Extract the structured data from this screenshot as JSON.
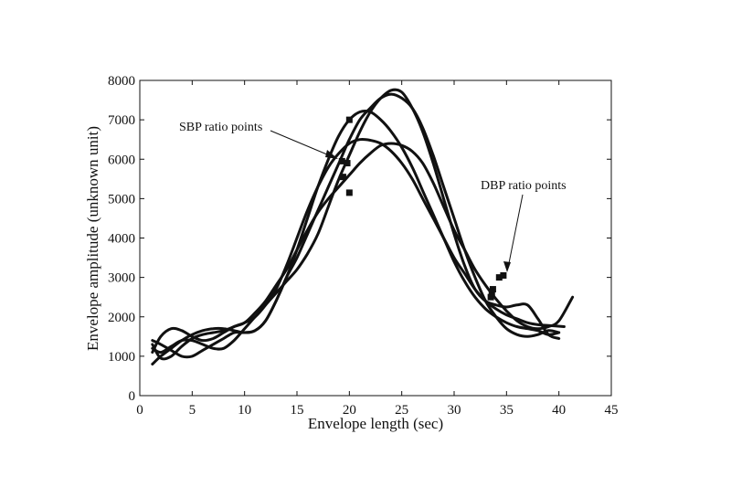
{
  "chart_data": {
    "type": "line",
    "title": "",
    "xlabel": "Envelope length (sec)",
    "ylabel": "Envelope amplitude (unknown unit)",
    "xlim": [
      0,
      45
    ],
    "ylim": [
      0,
      8000
    ],
    "xticks": [
      0,
      5,
      10,
      15,
      20,
      25,
      30,
      35,
      40,
      45
    ],
    "yticks": [
      0,
      1000,
      2000,
      3000,
      4000,
      5000,
      6000,
      7000,
      8000
    ],
    "grid": false,
    "line_color": "#111111",
    "series": [
      {
        "x": [
          1.2,
          2,
          3,
          4,
          5,
          6,
          7,
          8,
          9,
          10,
          11,
          12,
          13,
          14,
          15,
          16,
          17,
          18,
          19,
          20,
          21,
          22,
          23,
          24,
          25,
          26,
          27,
          28,
          29,
          30,
          31,
          32,
          33,
          34,
          35,
          36,
          37,
          38,
          39,
          40,
          41.3
        ],
        "y": [
          1300,
          950,
          1000,
          1250,
          1450,
          1550,
          1600,
          1650,
          1750,
          1850,
          2100,
          2400,
          2800,
          3200,
          3700,
          4200,
          4650,
          5000,
          5300,
          5600,
          5900,
          6150,
          6350,
          6400,
          6350,
          6200,
          5900,
          5400,
          4800,
          4200,
          3700,
          3200,
          2800,
          2450,
          2150,
          1900,
          1750,
          1700,
          1750,
          1900,
          2500
        ]
      },
      {
        "x": [
          1.2,
          2,
          3,
          4,
          5,
          6,
          7,
          8,
          9,
          10,
          11,
          12,
          13,
          14,
          15,
          16,
          17,
          18,
          19,
          20,
          21,
          22,
          23,
          24,
          25,
          26,
          27,
          28,
          29,
          30,
          31,
          32,
          33,
          34,
          35,
          36,
          37,
          38,
          39,
          40.5
        ],
        "y": [
          1100,
          1500,
          1700,
          1650,
          1500,
          1400,
          1450,
          1600,
          1750,
          1850,
          2000,
          2300,
          2700,
          3300,
          4000,
          4700,
          5300,
          5800,
          6150,
          6400,
          6500,
          6480,
          6400,
          6200,
          5900,
          5500,
          5000,
          4500,
          4000,
          3500,
          3100,
          2700,
          2400,
          2200,
          2050,
          1950,
          1850,
          1800,
          1780,
          1750
        ]
      },
      {
        "x": [
          1.2,
          2,
          3,
          4,
          5,
          6,
          7,
          8,
          9,
          10,
          11,
          12,
          13,
          14,
          15,
          16,
          17,
          18,
          19,
          20,
          21,
          22,
          23,
          24,
          25,
          26,
          27,
          28,
          29,
          30,
          31,
          32,
          33,
          34,
          35,
          36,
          37,
          38,
          39,
          40
        ],
        "y": [
          800,
          1000,
          1200,
          1400,
          1550,
          1650,
          1700,
          1700,
          1650,
          1600,
          1650,
          1900,
          2400,
          3000,
          3700,
          4500,
          5300,
          6000,
          6600,
          7000,
          7200,
          7200,
          7000,
          6700,
          6300,
          5800,
          5200,
          4600,
          4000,
          3400,
          2900,
          2500,
          2200,
          2000,
          1850,
          1750,
          1700,
          1650,
          1550,
          1600
        ]
      },
      {
        "x": [
          1.2,
          2,
          3,
          4,
          5,
          6,
          7,
          8,
          9,
          10,
          11,
          12,
          13,
          14,
          15,
          16,
          17,
          18,
          19,
          20,
          21,
          22,
          23,
          24,
          25,
          26,
          27,
          28,
          29,
          30,
          31,
          32,
          33,
          34,
          35,
          36,
          37,
          38,
          39,
          40
        ],
        "y": [
          1400,
          1300,
          1150,
          1000,
          1000,
          1150,
          1300,
          1450,
          1600,
          1600,
          1650,
          1900,
          2400,
          3000,
          3500,
          4100,
          4700,
          5300,
          5900,
          6500,
          7000,
          7300,
          7550,
          7650,
          7550,
          7300,
          6800,
          6100,
          5300,
          4500,
          3700,
          3000,
          2400,
          2000,
          1700,
          1550,
          1500,
          1550,
          1650,
          1600
        ]
      },
      {
        "x": [
          1.2,
          2,
          3,
          4,
          5,
          6,
          7,
          8,
          9,
          10,
          11,
          12,
          13,
          14,
          15,
          16,
          17,
          18,
          19,
          20,
          21,
          22,
          23,
          24,
          25,
          26,
          27,
          28,
          29,
          30,
          31,
          32,
          33,
          34,
          35,
          36,
          37,
          38,
          39,
          40
        ],
        "y": [
          1200,
          1100,
          1250,
          1400,
          1400,
          1300,
          1200,
          1200,
          1400,
          1700,
          2000,
          2300,
          2600,
          2900,
          3200,
          3600,
          4100,
          4800,
          5500,
          6100,
          6700,
          7200,
          7550,
          7750,
          7700,
          7300,
          6700,
          5900,
          5000,
          4100,
          3300,
          2700,
          2400,
          2300,
          2250,
          2300,
          2300,
          1950,
          1550,
          1450
        ]
      }
    ],
    "sbp_points": {
      "x": [
        19.3,
        19.4,
        19.8,
        20.0,
        20.0
      ],
      "y": [
        5950,
        5550,
        5900,
        7000,
        5150
      ]
    },
    "dbp_points": {
      "x": [
        33.5,
        33.6,
        33.7,
        34.3,
        34.7
      ],
      "y": [
        2500,
        2600,
        2700,
        3000,
        3050
      ]
    },
    "annotations": {
      "sbp_label": "SBP ratio points",
      "dbp_label": "DBP ratio points"
    }
  }
}
